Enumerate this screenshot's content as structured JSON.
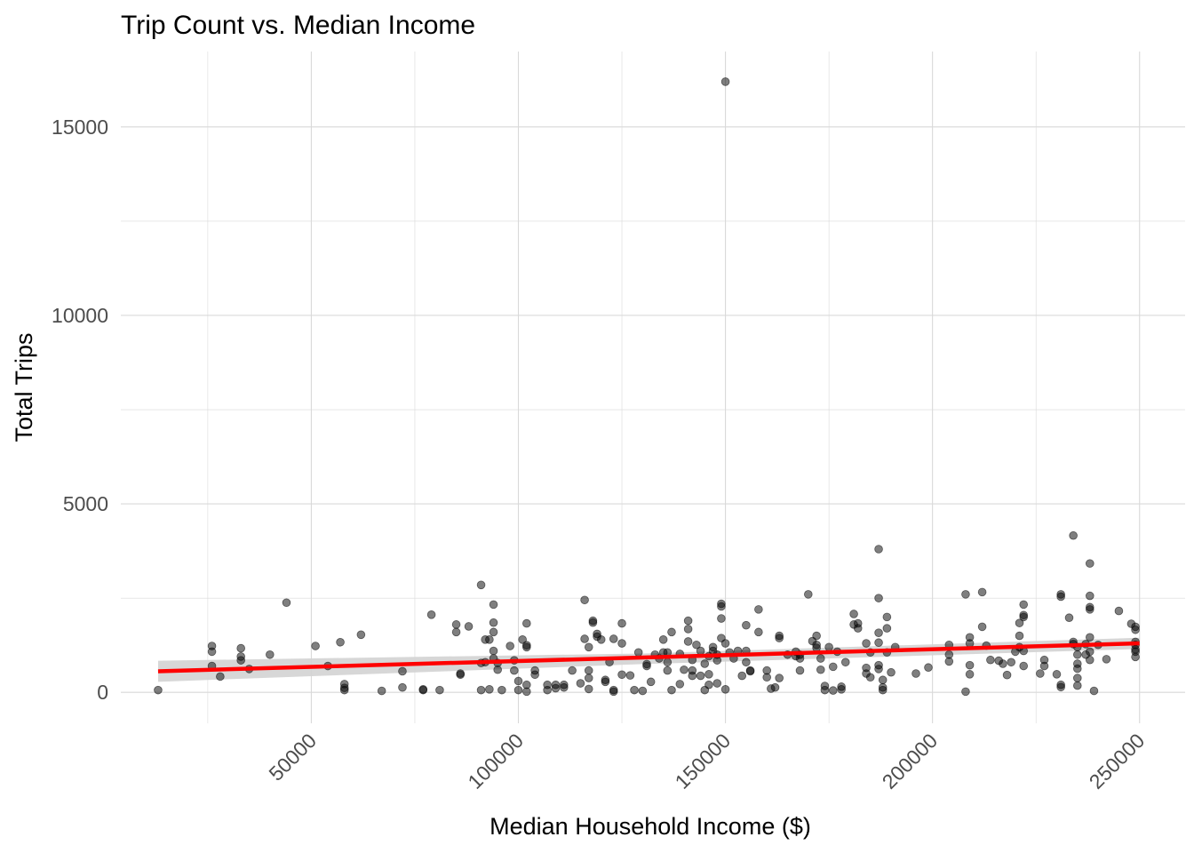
{
  "chart_data": {
    "type": "scatter",
    "title": "Trip Count vs. Median Income",
    "xlabel": "Median Household Income ($)",
    "ylabel": "Total Trips",
    "xlim": [
      4000,
      261000
    ],
    "ylim": [
      -820,
      17000
    ],
    "x_ticks": [
      50000,
      100000,
      150000,
      200000,
      250000
    ],
    "x_tick_labels": [
      "50000",
      "100000",
      "150000",
      "200000",
      "250000"
    ],
    "y_ticks": [
      0,
      5000,
      10000,
      15000
    ],
    "y_tick_labels": [
      "0",
      "5000",
      "10000",
      "15000"
    ],
    "grid": true,
    "legend": "none",
    "colors": {
      "points": "#000000",
      "fit_line": "#ff0000",
      "confidence_band": "#d3d3d3",
      "grid": "#d9d9d9"
    },
    "fit_line": {
      "x": [
        13000,
        250000
      ],
      "y": [
        560,
        1300
      ]
    },
    "confidence_band": {
      "x": [
        13000,
        130000,
        250000
      ],
      "lower": [
        280,
        750,
        1150
      ],
      "upper": [
        840,
        1030,
        1450
      ]
    },
    "points": [
      [
        13000,
        60
      ],
      [
        26000,
        1230
      ],
      [
        26000,
        1080
      ],
      [
        26000,
        700
      ],
      [
        28000,
        420
      ],
      [
        33000,
        1170
      ],
      [
        33000,
        950
      ],
      [
        33000,
        850
      ],
      [
        35000,
        620
      ],
      [
        40000,
        1000
      ],
      [
        44000,
        2380
      ],
      [
        51000,
        1230
      ],
      [
        54000,
        700
      ],
      [
        57000,
        1330
      ],
      [
        58000,
        220
      ],
      [
        58000,
        120
      ],
      [
        58000,
        60
      ],
      [
        62000,
        1530
      ],
      [
        67000,
        40
      ],
      [
        72000,
        560
      ],
      [
        72000,
        130
      ],
      [
        77000,
        80
      ],
      [
        77000,
        60
      ],
      [
        79000,
        2060
      ],
      [
        81000,
        60
      ],
      [
        85000,
        1800
      ],
      [
        85000,
        1600
      ],
      [
        86000,
        500
      ],
      [
        86000,
        470
      ],
      [
        88000,
        1750
      ],
      [
        91000,
        2850
      ],
      [
        91000,
        780
      ],
      [
        91000,
        60
      ],
      [
        92000,
        1400
      ],
      [
        92000,
        800
      ],
      [
        93000,
        1400
      ],
      [
        93000,
        80
      ],
      [
        94000,
        1850
      ],
      [
        94000,
        1600
      ],
      [
        94000,
        2330
      ],
      [
        94000,
        1100
      ],
      [
        94000,
        900
      ],
      [
        95000,
        780
      ],
      [
        95000,
        600
      ],
      [
        96000,
        60
      ],
      [
        98000,
        1230
      ],
      [
        99000,
        850
      ],
      [
        99000,
        580
      ],
      [
        100000,
        300
      ],
      [
        100000,
        60
      ],
      [
        101000,
        1400
      ],
      [
        102000,
        1830
      ],
      [
        102000,
        1250
      ],
      [
        102000,
        1200
      ],
      [
        102000,
        200
      ],
      [
        102000,
        20
      ],
      [
        104000,
        580
      ],
      [
        104000,
        470
      ],
      [
        107000,
        200
      ],
      [
        107000,
        60
      ],
      [
        109000,
        200
      ],
      [
        109000,
        110
      ],
      [
        111000,
        200
      ],
      [
        111000,
        130
      ],
      [
        113000,
        580
      ],
      [
        115000,
        240
      ],
      [
        116000,
        1420
      ],
      [
        116000,
        2450
      ],
      [
        117000,
        1200
      ],
      [
        117000,
        580
      ],
      [
        117000,
        380
      ],
      [
        117000,
        90
      ],
      [
        118000,
        1900
      ],
      [
        118000,
        1850
      ],
      [
        119000,
        1550
      ],
      [
        119000,
        1480
      ],
      [
        120000,
        1400
      ],
      [
        121000,
        280
      ],
      [
        121000,
        330
      ],
      [
        122000,
        800
      ],
      [
        123000,
        1420
      ],
      [
        123000,
        60
      ],
      [
        123000,
        20
      ],
      [
        125000,
        1830
      ],
      [
        125000,
        1300
      ],
      [
        125000,
        470
      ],
      [
        127000,
        450
      ],
      [
        128000,
        60
      ],
      [
        129000,
        1060
      ],
      [
        130000,
        40
      ],
      [
        131000,
        750
      ],
      [
        131000,
        700
      ],
      [
        132000,
        280
      ],
      [
        133000,
        1000
      ],
      [
        134000,
        900
      ],
      [
        135000,
        1060
      ],
      [
        135000,
        1400
      ],
      [
        136000,
        1060
      ],
      [
        136000,
        800
      ],
      [
        136000,
        580
      ],
      [
        137000,
        1600
      ],
      [
        137000,
        60
      ],
      [
        139000,
        220
      ],
      [
        139000,
        1020
      ],
      [
        140000,
        600
      ],
      [
        141000,
        1900
      ],
      [
        141000,
        1680
      ],
      [
        141000,
        1350
      ],
      [
        142000,
        860
      ],
      [
        142000,
        580
      ],
      [
        142000,
        440
      ],
      [
        143000,
        1260
      ],
      [
        144000,
        1100
      ],
      [
        144000,
        440
      ],
      [
        145000,
        760
      ],
      [
        145000,
        60
      ],
      [
        146000,
        960
      ],
      [
        146000,
        480
      ],
      [
        146000,
        200
      ],
      [
        147000,
        1200
      ],
      [
        147000,
        1100
      ],
      [
        148000,
        240
      ],
      [
        148000,
        1000
      ],
      [
        148000,
        850
      ],
      [
        149000,
        2280
      ],
      [
        149000,
        2350
      ],
      [
        149000,
        1960
      ],
      [
        149000,
        1440
      ],
      [
        150000,
        1300
      ],
      [
        150000,
        80
      ],
      [
        150000,
        16200
      ],
      [
        151000,
        1060
      ],
      [
        152000,
        900
      ],
      [
        153000,
        1100
      ],
      [
        154000,
        440
      ],
      [
        155000,
        1780
      ],
      [
        155000,
        1100
      ],
      [
        155000,
        800
      ],
      [
        156000,
        580
      ],
      [
        156000,
        560
      ],
      [
        158000,
        2200
      ],
      [
        158000,
        1600
      ],
      [
        160000,
        580
      ],
      [
        160000,
        400
      ],
      [
        161000,
        100
      ],
      [
        162000,
        130
      ],
      [
        163000,
        1500
      ],
      [
        163000,
        1440
      ],
      [
        163000,
        380
      ],
      [
        165000,
        1000
      ],
      [
        167000,
        960
      ],
      [
        167000,
        1080
      ],
      [
        168000,
        900
      ],
      [
        168000,
        580
      ],
      [
        168000,
        1000
      ],
      [
        170000,
        2600
      ],
      [
        171000,
        1360
      ],
      [
        172000,
        1500
      ],
      [
        172000,
        1260
      ],
      [
        172000,
        1180
      ],
      [
        173000,
        900
      ],
      [
        173000,
        600
      ],
      [
        174000,
        170
      ],
      [
        174000,
        60
      ],
      [
        175000,
        1200
      ],
      [
        176000,
        680
      ],
      [
        176000,
        50
      ],
      [
        177000,
        1080
      ],
      [
        178000,
        150
      ],
      [
        178000,
        80
      ],
      [
        179000,
        800
      ],
      [
        181000,
        2080
      ],
      [
        181000,
        1800
      ],
      [
        182000,
        1830
      ],
      [
        182000,
        1700
      ],
      [
        184000,
        1300
      ],
      [
        184000,
        650
      ],
      [
        184000,
        500
      ],
      [
        185000,
        1060
      ],
      [
        185000,
        400
      ],
      [
        187000,
        3800
      ],
      [
        187000,
        2500
      ],
      [
        187000,
        1580
      ],
      [
        187000,
        1320
      ],
      [
        187000,
        720
      ],
      [
        187000,
        620
      ],
      [
        188000,
        330
      ],
      [
        188000,
        130
      ],
      [
        188000,
        60
      ],
      [
        189000,
        2000
      ],
      [
        189000,
        1700
      ],
      [
        189000,
        1060
      ],
      [
        190000,
        530
      ],
      [
        191000,
        1200
      ],
      [
        196000,
        500
      ],
      [
        199000,
        660
      ],
      [
        204000,
        1260
      ],
      [
        204000,
        1000
      ],
      [
        204000,
        820
      ],
      [
        208000,
        2600
      ],
      [
        208000,
        20
      ],
      [
        209000,
        1460
      ],
      [
        209000,
        1300
      ],
      [
        209000,
        720
      ],
      [
        209000,
        480
      ],
      [
        212000,
        2660
      ],
      [
        212000,
        1740
      ],
      [
        213000,
        1240
      ],
      [
        214000,
        860
      ],
      [
        216000,
        840
      ],
      [
        217000,
        760
      ],
      [
        218000,
        460
      ],
      [
        219000,
        800
      ],
      [
        220000,
        1080
      ],
      [
        221000,
        1840
      ],
      [
        221000,
        1500
      ],
      [
        221000,
        1200
      ],
      [
        222000,
        2330
      ],
      [
        222000,
        2050
      ],
      [
        222000,
        2000
      ],
      [
        222000,
        1100
      ],
      [
        222000,
        700
      ],
      [
        226000,
        500
      ],
      [
        227000,
        860
      ],
      [
        227000,
        700
      ],
      [
        230000,
        480
      ],
      [
        231000,
        200
      ],
      [
        231000,
        2600
      ],
      [
        231000,
        2540
      ],
      [
        231000,
        140
      ],
      [
        233000,
        1980
      ],
      [
        234000,
        4160
      ],
      [
        234000,
        1340
      ],
      [
        234000,
        1280
      ],
      [
        235000,
        1200
      ],
      [
        235000,
        1000
      ],
      [
        235000,
        760
      ],
      [
        235000,
        630
      ],
      [
        235000,
        380
      ],
      [
        235000,
        180
      ],
      [
        237000,
        1280
      ],
      [
        237000,
        1000
      ],
      [
        238000,
        2560
      ],
      [
        238000,
        2260
      ],
      [
        238000,
        2200
      ],
      [
        238000,
        1460
      ],
      [
        238000,
        1080
      ],
      [
        238000,
        860
      ],
      [
        238000,
        3420
      ],
      [
        239000,
        40
      ],
      [
        240000,
        1260
      ],
      [
        242000,
        880
      ],
      [
        245000,
        2160
      ],
      [
        248000,
        1820
      ],
      [
        249000,
        1740
      ],
      [
        249000,
        1660
      ],
      [
        249000,
        1340
      ],
      [
        249000,
        1260
      ],
      [
        249000,
        1140
      ],
      [
        249000,
        1080
      ],
      [
        249000,
        940
      ]
    ]
  }
}
